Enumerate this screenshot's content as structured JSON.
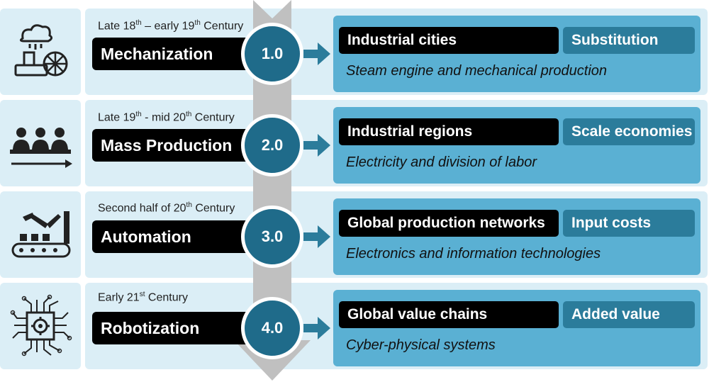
{
  "rows": [
    {
      "period_pre": "Late 18",
      "period_sup1": "th",
      "period_mid": " – early 19",
      "period_sup2": "th",
      "period_post": " Century",
      "phase": "Mechanization",
      "version": "1.0",
      "outcome": "Industrial cities",
      "driver": "Substitution",
      "description": "Steam engine and mechanical production",
      "icon": "steam-engine-icon"
    },
    {
      "period_pre": "Late 19",
      "period_sup1": "th",
      "period_mid": " - mid 20",
      "period_sup2": "th",
      "period_post": " Century",
      "phase": "Mass Production",
      "version": "2.0",
      "outcome": "Industrial regions",
      "driver": "Scale economies",
      "description": "Electricity and division of labor",
      "icon": "assembly-line-workers-icon"
    },
    {
      "period_pre": "Second half of 20",
      "period_sup1": "th",
      "period_mid": " Century",
      "period_sup2": "",
      "period_post": "",
      "phase": "Automation",
      "version": "3.0",
      "outcome": "Global production networks",
      "driver": "Input costs",
      "description": "Electronics and information technologies",
      "icon": "robot-arm-conveyor-icon"
    },
    {
      "period_pre": "Early 21",
      "period_sup1": "st",
      "period_mid": " Century",
      "period_sup2": "",
      "period_post": "",
      "phase": "Robotization",
      "version": "4.0",
      "outcome": "Global value chains",
      "driver": "Added value",
      "description": "Cyber-physical systems",
      "icon": "circuit-chip-gear-icon"
    }
  ],
  "colors": {
    "light_bg": "#dbeef6",
    "detail_bg": "#5ab0d3",
    "circle": "#1f6b8a",
    "driver_label": "#2b7c9b",
    "spine": "#c0c0c0",
    "phase_label": "#000000"
  }
}
